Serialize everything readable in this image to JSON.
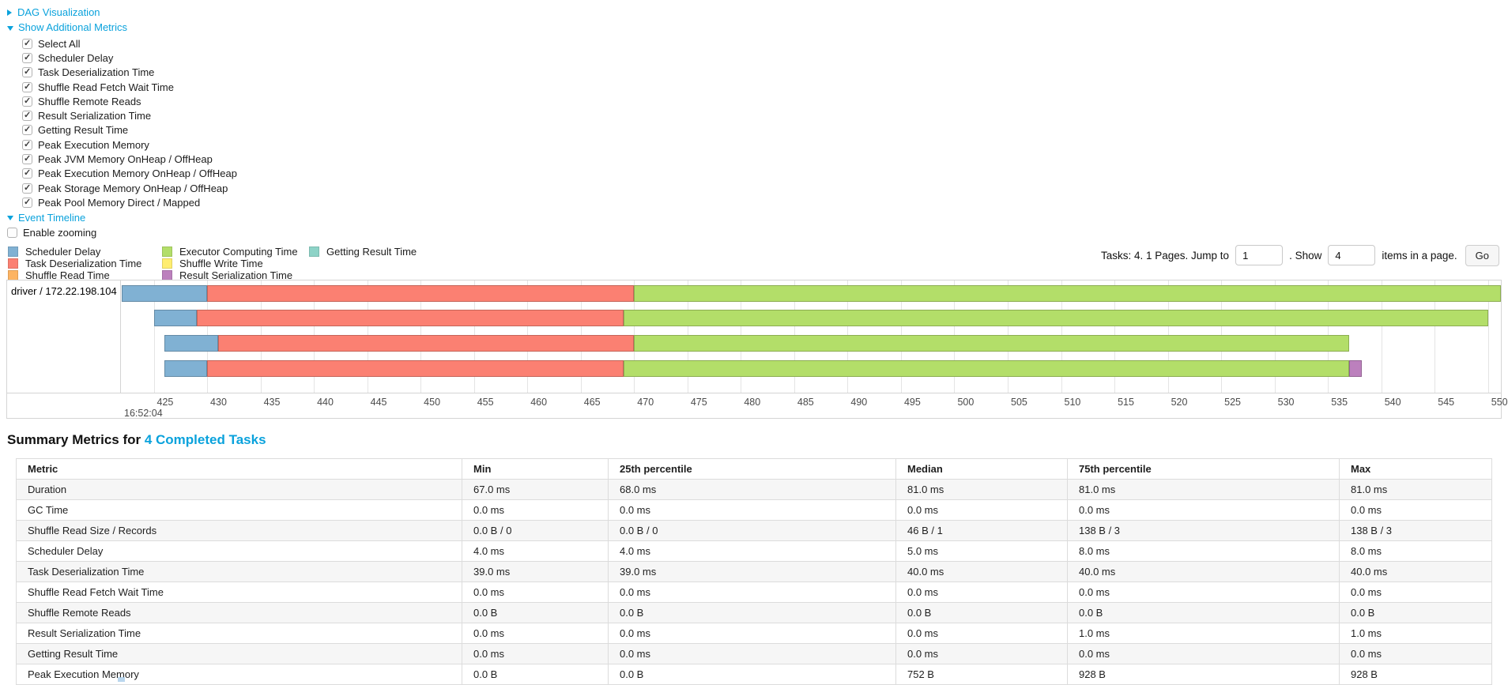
{
  "colors": {
    "link": "#0aa2dc"
  },
  "controls": {
    "dag_link": "DAG Visualization",
    "metrics_link": "Show Additional Metrics",
    "metrics_options": [
      "Select All",
      "Scheduler Delay",
      "Task Deserialization Time",
      "Shuffle Read Fetch Wait Time",
      "Shuffle Remote Reads",
      "Result Serialization Time",
      "Getting Result Time",
      "Peak Execution Memory",
      "Peak JVM Memory OnHeap / OffHeap",
      "Peak Execution Memory OnHeap / OffHeap",
      "Peak Storage Memory OnHeap / OffHeap",
      "Peak Pool Memory Direct / Mapped"
    ],
    "event_timeline_link": "Event Timeline",
    "enable_zooming_label": "Enable zooming"
  },
  "pagination": {
    "tasks_text": "Tasks: 4. 1 Pages. Jump to",
    "jump_value": "1",
    "show_label": ". Show",
    "show_value": "4",
    "items_label": "items in a page.",
    "go_label": "Go"
  },
  "chart_data": {
    "type": "timeline",
    "group_label": "driver / 172.22.198.104",
    "x_axis_unit": "ms within second",
    "major_time_label": "16:52:04",
    "x_range": [
      422,
      551.2
    ],
    "axis_ticks": [
      425,
      430,
      435,
      440,
      445,
      450,
      455,
      460,
      465,
      470,
      475,
      480,
      485,
      490,
      495,
      500,
      505,
      510,
      515,
      520,
      525,
      530,
      535,
      540,
      545,
      550
    ],
    "legend_columns": [
      [
        {
          "label": "Scheduler Delay",
          "color": "#80B1D3"
        },
        {
          "label": "Task Deserialization Time",
          "color": "#FB8072"
        },
        {
          "label": "Shuffle Read Time",
          "color": "#FDB462"
        }
      ],
      [
        {
          "label": "Executor Computing Time",
          "color": "#B3DE69"
        },
        {
          "label": "Shuffle Write Time",
          "color": "#FFED6F"
        },
        {
          "label": "Result Serialization Time",
          "color": "#BC80BD"
        }
      ],
      [
        {
          "label": "Getting Result Time",
          "color": "#8DD3C7"
        }
      ]
    ],
    "tasks": [
      {
        "segments": [
          {
            "metric": "Scheduler Delay",
            "start": 422,
            "end": 430
          },
          {
            "metric": "Task Deserialization Time",
            "start": 430,
            "end": 470
          },
          {
            "metric": "Executor Computing Time",
            "start": 470,
            "end": 551.2
          }
        ]
      },
      {
        "segments": [
          {
            "metric": "Scheduler Delay",
            "start": 425,
            "end": 429
          },
          {
            "metric": "Task Deserialization Time",
            "start": 429,
            "end": 469
          },
          {
            "metric": "Executor Computing Time",
            "start": 469,
            "end": 550
          }
        ]
      },
      {
        "segments": [
          {
            "metric": "Scheduler Delay",
            "start": 426,
            "end": 431
          },
          {
            "metric": "Task Deserialization Time",
            "start": 431,
            "end": 470
          },
          {
            "metric": "Executor Computing Time",
            "start": 470,
            "end": 537
          }
        ]
      },
      {
        "segments": [
          {
            "metric": "Scheduler Delay",
            "start": 426,
            "end": 430
          },
          {
            "metric": "Task Deserialization Time",
            "start": 430,
            "end": 469
          },
          {
            "metric": "Executor Computing Time",
            "start": 469,
            "end": 537
          },
          {
            "metric": "Result Serialization Time",
            "start": 537,
            "end": 538.2
          }
        ]
      }
    ]
  },
  "summary": {
    "title_prefix": "Summary Metrics for ",
    "title_link": "4 Completed Tasks",
    "columns": [
      "Metric",
      "Min",
      "25th percentile",
      "Median",
      "75th percentile",
      "Max"
    ],
    "rows": [
      [
        "Duration",
        "67.0 ms",
        "68.0 ms",
        "81.0 ms",
        "81.0 ms",
        "81.0 ms"
      ],
      [
        "GC Time",
        "0.0 ms",
        "0.0 ms",
        "0.0 ms",
        "0.0 ms",
        "0.0 ms"
      ],
      [
        "Shuffle Read Size / Records",
        "0.0 B / 0",
        "0.0 B / 0",
        "46 B / 1",
        "138 B / 3",
        "138 B / 3"
      ],
      [
        "Scheduler Delay",
        "4.0 ms",
        "4.0 ms",
        "5.0 ms",
        "8.0 ms",
        "8.0 ms"
      ],
      [
        "Task Deserialization Time",
        "39.0 ms",
        "39.0 ms",
        "40.0 ms",
        "40.0 ms",
        "40.0 ms"
      ],
      [
        "Shuffle Read Fetch Wait Time",
        "0.0 ms",
        "0.0 ms",
        "0.0 ms",
        "0.0 ms",
        "0.0 ms"
      ],
      [
        "Shuffle Remote Reads",
        "0.0 B",
        "0.0 B",
        "0.0 B",
        "0.0 B",
        "0.0 B"
      ],
      [
        "Result Serialization Time",
        "0.0 ms",
        "0.0 ms",
        "0.0 ms",
        "1.0 ms",
        "1.0 ms"
      ],
      [
        "Getting Result Time",
        "0.0 ms",
        "0.0 ms",
        "0.0 ms",
        "0.0 ms",
        "0.0 ms"
      ],
      [
        "Peak Execution Memory",
        "0.0 B",
        "0.0 B",
        "752 B",
        "928 B",
        "928 B"
      ]
    ]
  }
}
